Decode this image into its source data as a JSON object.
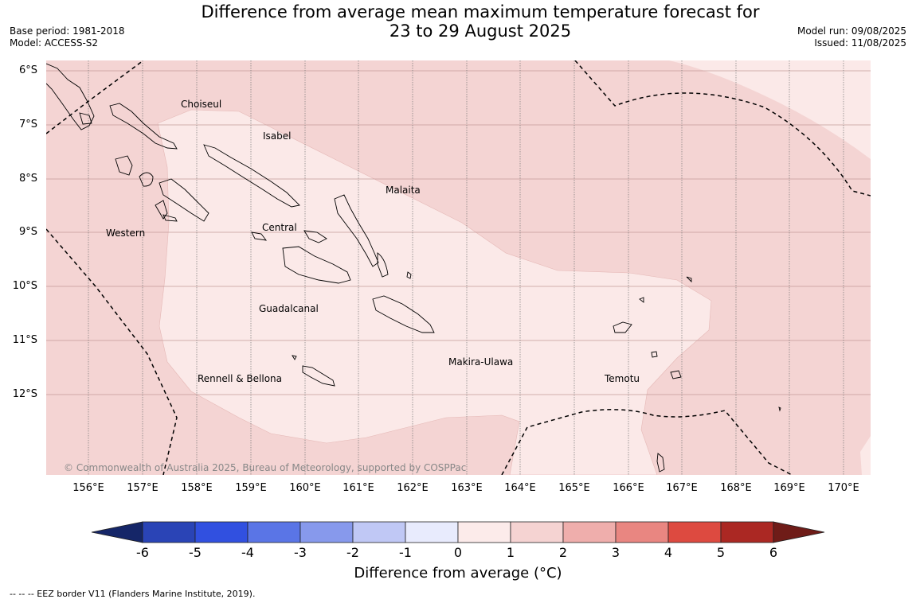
{
  "header": {
    "title_line1": "Difference from average mean maximum temperature forecast for",
    "title_line2": "23 to 29 August 2025",
    "base_period": "Base period: 1981-2018",
    "model": "Model: ACCESS-S2",
    "model_run": "Model run: 09/08/2025",
    "issued": "Issued: 11/08/2025"
  },
  "map": {
    "latitude_labels": [
      "6°S",
      "7°S",
      "8°S",
      "9°S",
      "10°S",
      "11°S",
      "12°S"
    ],
    "longitude_labels": [
      "156°E",
      "157°E",
      "158°E",
      "159°E",
      "160°E",
      "161°E",
      "162°E",
      "163°E",
      "164°E",
      "165°E",
      "166°E",
      "167°E",
      "168°E",
      "169°E",
      "170°E"
    ],
    "regions": [
      "Choiseul",
      "Isabel",
      "Malaita",
      "Western",
      "Central",
      "Guadalcanal",
      "Makira-Ulawa",
      "Rennell & Bellona",
      "Temotu"
    ],
    "copyright": "© Commonwealth of Australia 2025, Bureau of Meteorology, supported by COSPPac",
    "shading": {
      "range_1_to_2": "#fbe9e8",
      "range_2_to_3": "#f4d4d3"
    }
  },
  "colorbar": {
    "ticks": [
      "-6",
      "-5",
      "-4",
      "-3",
      "-2",
      "-1",
      "0",
      "1",
      "2",
      "3",
      "4",
      "5",
      "6"
    ],
    "colors": [
      "#152668",
      "#2a44b6",
      "#3150e0",
      "#5a75e6",
      "#8799ec",
      "#c0c8f5",
      "#e8ebfd",
      "#fcebea",
      "#f5d3d2",
      "#efaeac",
      "#e98681",
      "#dd4a40",
      "#ab2823",
      "#6f1c18"
    ],
    "label": "Difference from average (°C)"
  },
  "footnote": "--  --  -- EEZ border V11 (Flanders Marine Institute, 2019)."
}
